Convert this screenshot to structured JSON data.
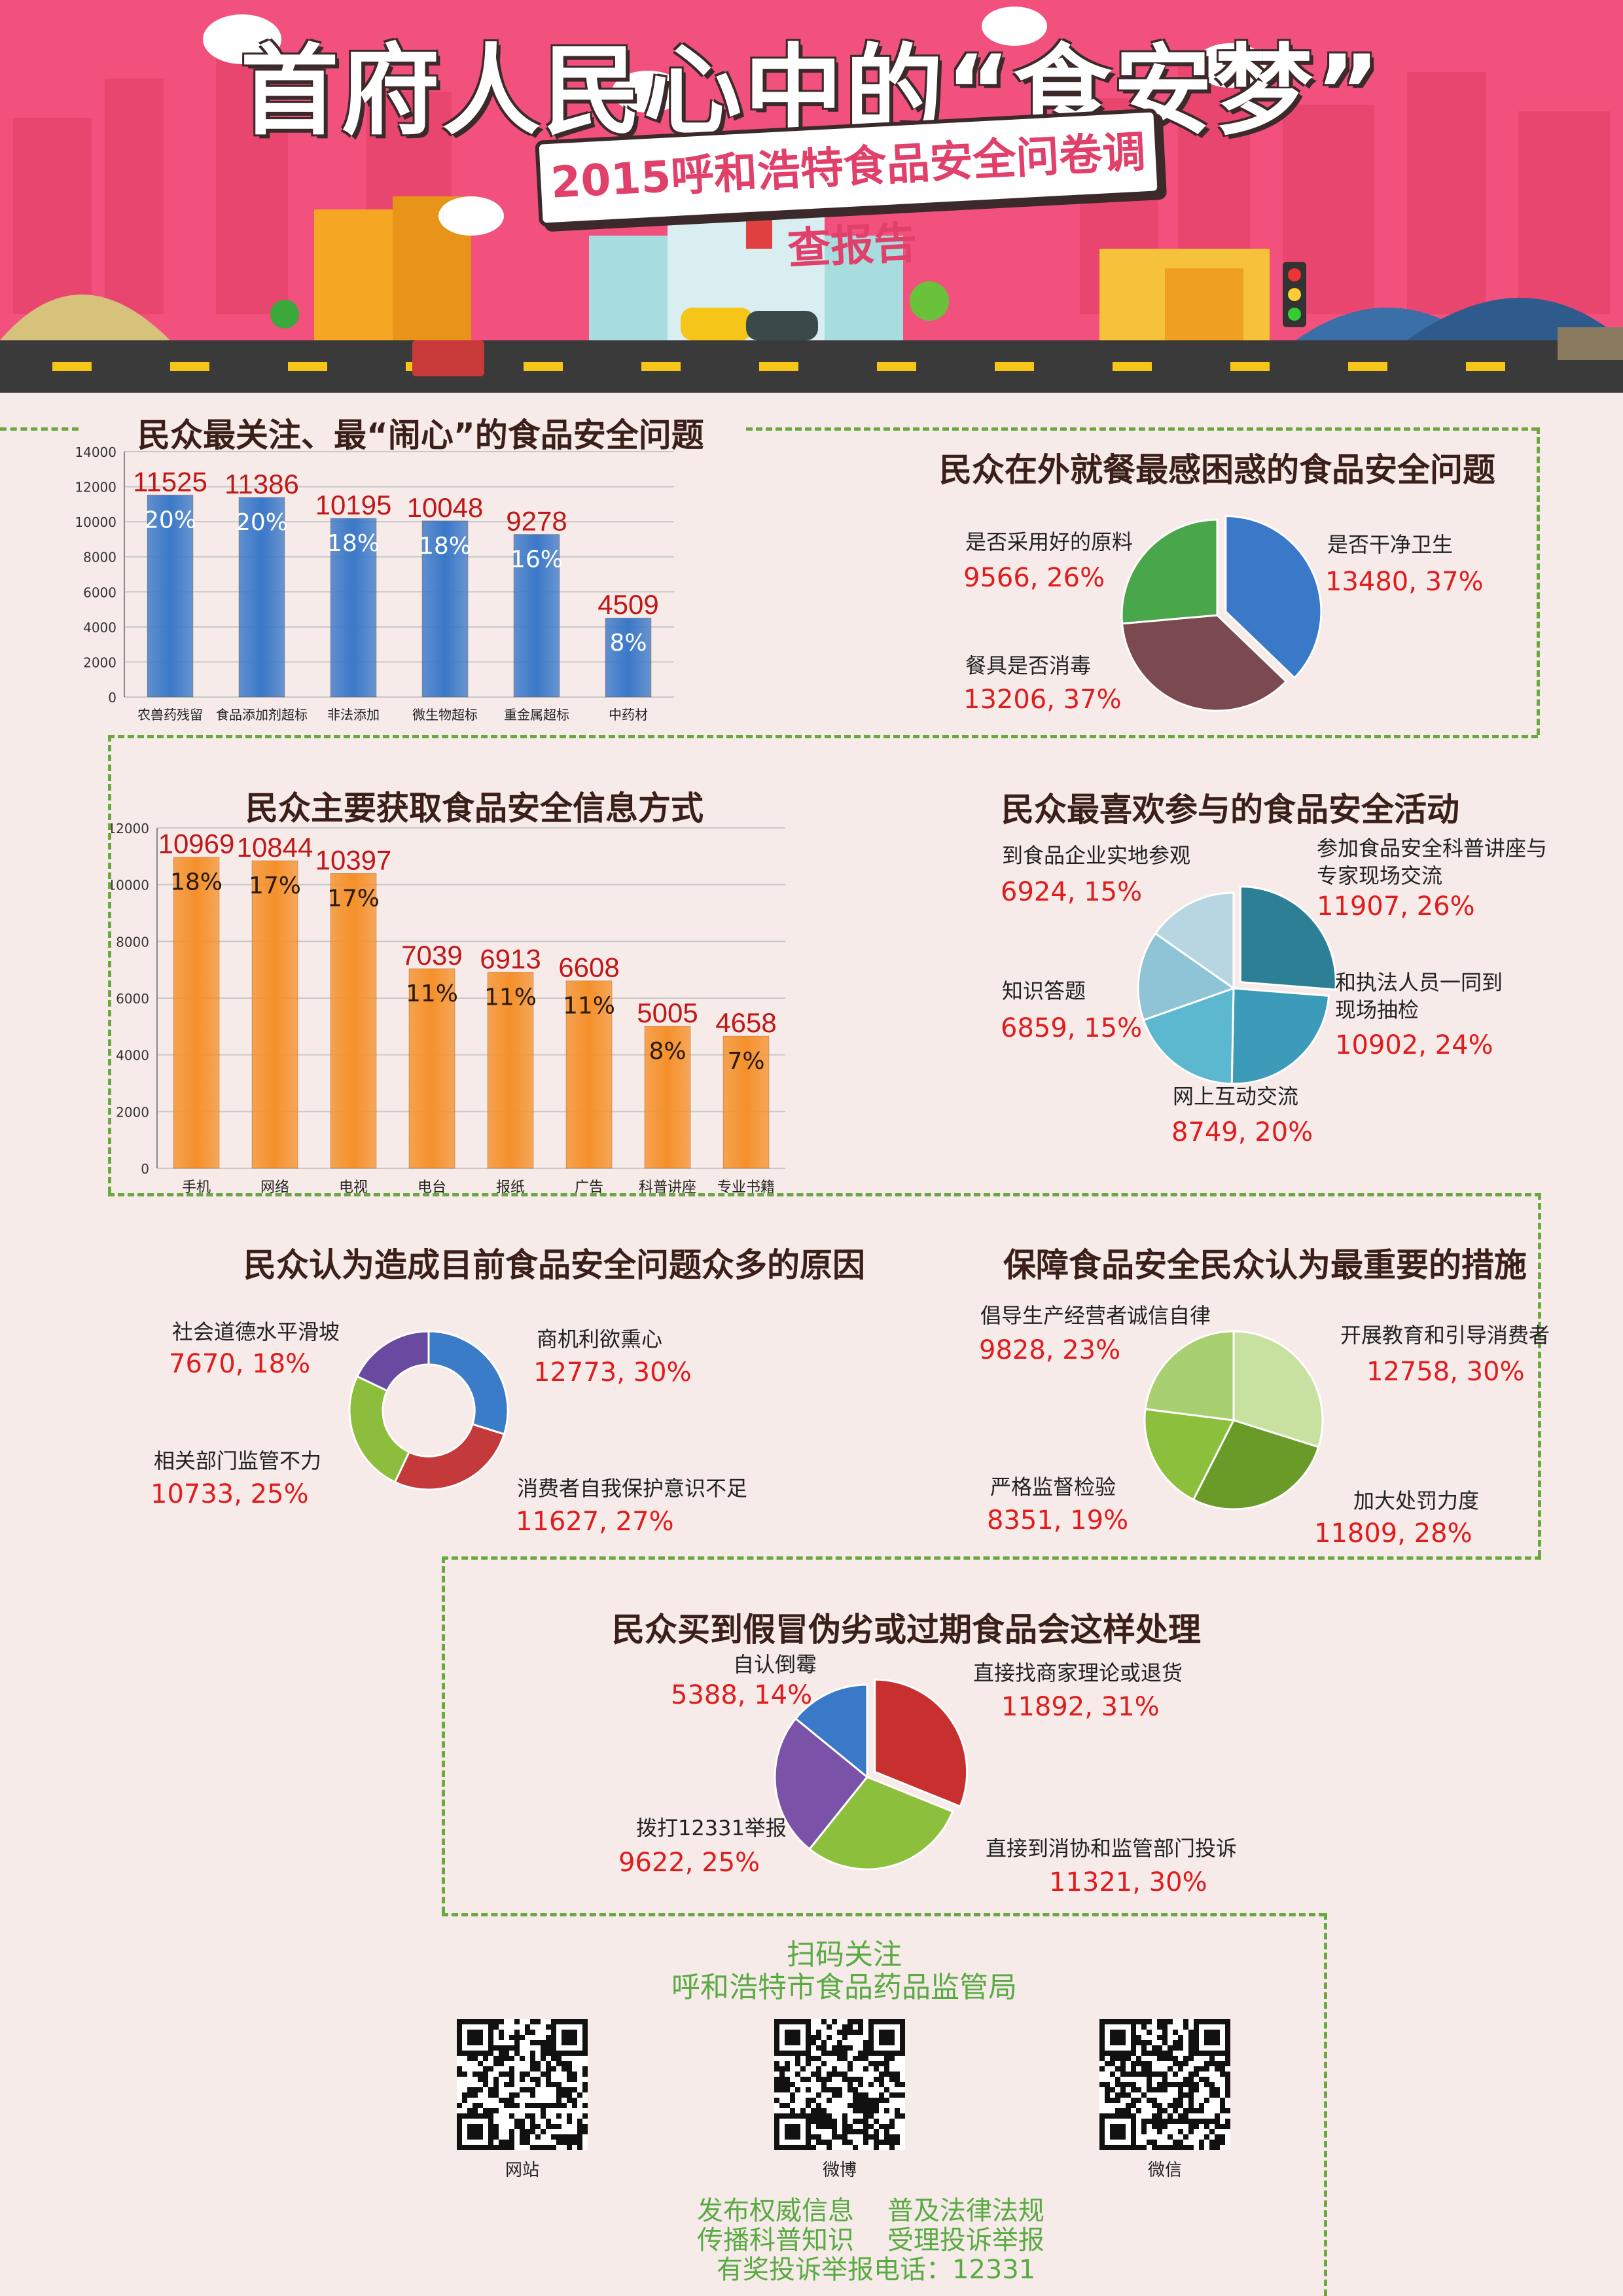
{
  "header": {
    "title": "首府人民心中的“食安梦”",
    "subtitle": "2015呼和浩特食品安全问卷调查报告"
  },
  "colors": {
    "header_bg": "#f2517e",
    "dash_green": "#6aa840",
    "value_red": "#e01c1c",
    "blue_bar": "#3a78c8",
    "orange_bar": "#f5902a",
    "bg": "#f7ebe9"
  },
  "sections": {
    "s1_title": "民众最关注、最“闹心”的食品安全问题",
    "s2_title": "民众在外就餐最感困惑的食品安全问题",
    "s3_title": "民众主要获取食品安全信息方式",
    "s4_title": "民众最喜欢参与的食品安全活动",
    "s5_title": "民众认为造成目前食品安全问题众多的原因",
    "s6_title": "保障食品安全民众认为最重要的措施",
    "s7_title": "民众买到假冒伪劣或过期食品会这样处理"
  },
  "chart_data": [
    {
      "id": "concerns",
      "type": "bar",
      "categories": [
        "农兽药残留",
        "食品添加剂超标",
        "非法添加",
        "微生物超标",
        "重金属超标",
        "中药材"
      ],
      "values": [
        11525,
        11386,
        10195,
        10048,
        9278,
        4509
      ],
      "pct": [
        "20%",
        "20%",
        "18%",
        "18%",
        "16%",
        "8%"
      ],
      "ylim": [
        0,
        14000
      ],
      "yticks": [
        "0",
        "2000",
        "4000",
        "6000",
        "8000",
        "10000",
        "12000",
        "14000"
      ],
      "color": "#3a78c8",
      "grid": true
    },
    {
      "id": "dining",
      "type": "pie",
      "slices": [
        {
          "label": "是否干净卫生",
          "value": 13480,
          "text": "13480, 37%",
          "color": "#3a78c8"
        },
        {
          "label": "餐具是否消毒",
          "value": 13206,
          "text": "13206, 37%",
          "color": "#7a4a50"
        },
        {
          "label": "是否采用好的原料",
          "value": 9566,
          "text": "9566, 26%",
          "color": "#4aa64a"
        }
      ]
    },
    {
      "id": "info_source",
      "type": "bar",
      "categories": [
        "手机",
        "网络",
        "电视",
        "电台",
        "报纸",
        "广告",
        "科普讲座",
        "专业书籍"
      ],
      "values": [
        10969,
        10844,
        10397,
        7039,
        6913,
        6608,
        5005,
        4658
      ],
      "pct": [
        "18%",
        "17%",
        "17%",
        "11%",
        "11%",
        "11%",
        "8%",
        "7%"
      ],
      "ylim": [
        0,
        12000
      ],
      "yticks": [
        "0",
        "2000",
        "4000",
        "6000",
        "8000",
        "10000",
        "12000"
      ],
      "color": "#f5902a",
      "grid": true
    },
    {
      "id": "activities",
      "type": "pie",
      "slices": [
        {
          "label": "参加食品安全科普讲座与专家现场交流",
          "value": 11907,
          "text": "11907, 26%",
          "color": "#2d7f95"
        },
        {
          "label": "和执法人员一同到现场抽检",
          "value": 10902,
          "text": "10902, 24%",
          "color": "#3b9bb8"
        },
        {
          "label": "网上互动交流",
          "value": 8749,
          "text": "8749, 20%",
          "color": "#5bb8cf"
        },
        {
          "label": "知识答题",
          "value": 6859,
          "text": "6859, 15%",
          "color": "#8ec4d6"
        },
        {
          "label": "到食品企业实地参观",
          "value": 6924,
          "text": "6924, 15%",
          "color": "#b8d6e2"
        }
      ]
    },
    {
      "id": "causes",
      "type": "pie",
      "slices": [
        {
          "label": "商机利欲熏心",
          "value": 12773,
          "text": "12773, 30%",
          "color": "#3a7cc8"
        },
        {
          "label": "消费者自我保护意识不足",
          "value": 11627,
          "text": "11627, 27%",
          "color": "#c43a3a"
        },
        {
          "label": "相关部门监管不力",
          "value": 10733,
          "text": "10733, 25%",
          "color": "#8cbd3c"
        },
        {
          "label": "社会道德水平滑坡",
          "value": 7670,
          "text": "7670, 18%",
          "color": "#6a4aa0"
        }
      ]
    },
    {
      "id": "measures",
      "type": "pie",
      "slices": [
        {
          "label": "开展教育和引导消费者",
          "value": 12758,
          "text": "12758, 30%",
          "color": "#c8e0a0"
        },
        {
          "label": "加大处罚力度",
          "value": 11809,
          "text": "11809, 28%",
          "color": "#6a9a28"
        },
        {
          "label": "严格监督检验",
          "value": 8351,
          "text": "8351, 19%",
          "color": "#8cbf3c"
        },
        {
          "label": "倡导生产经营者诚信自律",
          "value": 9828,
          "text": "9828, 23%",
          "color": "#a8d070"
        }
      ]
    },
    {
      "id": "handling",
      "type": "pie",
      "slices": [
        {
          "label": "直接找商家理论或退货",
          "value": 11892,
          "text": "11892, 31%",
          "color": "#c83030"
        },
        {
          "label": "直接到消协和监管部门投诉",
          "value": 11321,
          "text": "11321, 30%",
          "color": "#8cbf3c"
        },
        {
          "label": "拨打12331举报",
          "value": 9622,
          "text": "9622, 25%",
          "color": "#7a52a8"
        },
        {
          "label": "自认倒霉",
          "value": 5388,
          "text": "5388, 14%",
          "color": "#3a78c8"
        }
      ]
    }
  ],
  "footer": {
    "scan": "扫码关注",
    "org": "呼和浩特市食品药品监管局",
    "qr_labels": [
      "网站",
      "微博",
      "微信"
    ],
    "line1": "发布权威信息    普及法律法规",
    "line2": "传播科普知识    受理投诉举报",
    "line3": "有奖投诉举报电话：12331"
  }
}
